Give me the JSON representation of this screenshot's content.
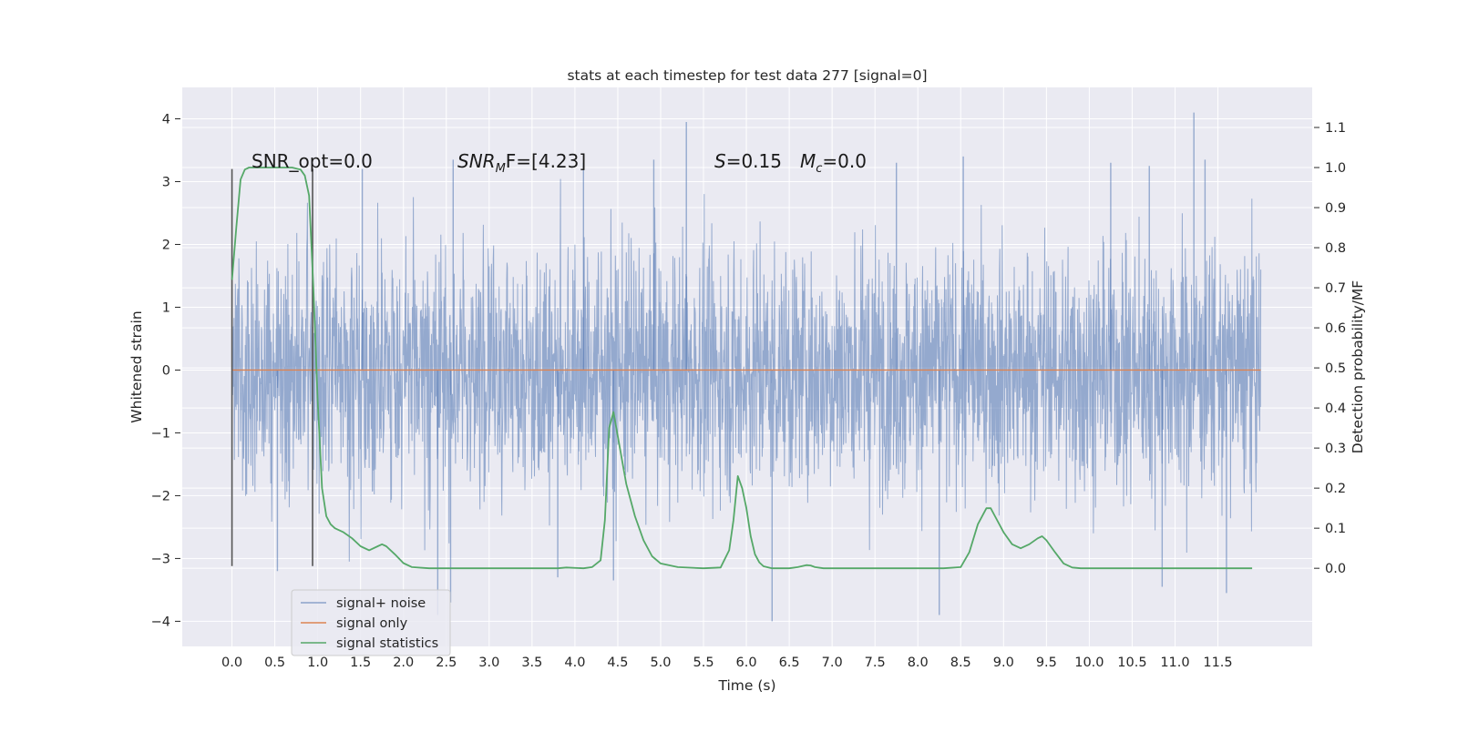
{
  "chart_data": {
    "type": "line",
    "title": "stats at each timestep for test data 277 [signal=0]",
    "xlabel": "Time (s)",
    "ylabel": "Whitened strain",
    "ylabel_right": "Detection probability/MF",
    "xlim": [
      -0.58,
      12.6
    ],
    "ylim": [
      -4.4,
      4.5
    ],
    "ylim_right": [
      -0.195,
      1.2
    ],
    "x_ticks": [
      0.0,
      0.5,
      1.0,
      1.5,
      2.0,
      2.5,
      3.0,
      3.5,
      4.0,
      4.5,
      5.0,
      5.5,
      6.0,
      6.5,
      7.0,
      7.5,
      8.0,
      8.5,
      9.0,
      9.5,
      10.0,
      10.5,
      11.0,
      11.5
    ],
    "x_tick_labels": [
      "0.0",
      "0.5",
      "1.0",
      "1.5",
      "2.0",
      "2.5",
      "3.0",
      "3.5",
      "4.0",
      "4.5",
      "5.0",
      "5.5",
      "6.0",
      "6.5",
      "7.0",
      "7.5",
      "8.0",
      "8.5",
      "9.0",
      "9.5",
      "10.0",
      "10.5",
      "11.0",
      "11.5"
    ],
    "y_ticks": [
      -4,
      -3,
      -2,
      -1,
      0,
      1,
      2,
      3,
      4
    ],
    "y_tick_labels": [
      "−4",
      "−3",
      "−2",
      "−1",
      "0",
      "1",
      "2",
      "3",
      "4"
    ],
    "y_ticks_right": [
      0.0,
      0.1,
      0.2,
      0.3,
      0.4,
      0.5,
      0.6,
      0.7,
      0.8,
      0.9,
      1.0,
      1.1
    ],
    "y_tick_labels_right": [
      "0.0",
      "0.1",
      "0.2",
      "0.3",
      "0.4",
      "0.5",
      "0.6",
      "0.7",
      "0.8",
      "0.9",
      "1.0",
      "1.1"
    ],
    "grid": true,
    "legend_position": "lower-left",
    "series": [
      {
        "name": "signal+ noise",
        "axis": "left",
        "color": "#4c72b0",
        "style": "dense noise trace",
        "x_range": [
          0.0,
          12.0
        ],
        "y_range": [
          -4.0,
          4.1
        ],
        "typical_band": [
          -2.1,
          2.1
        ],
        "spikes": [
          {
            "x": 0.53,
            "y": -3.2
          },
          {
            "x": 2.4,
            "y": -3.9
          },
          {
            "x": 2.55,
            "y": -3.7
          },
          {
            "x": 3.8,
            "y": -3.3
          },
          {
            "x": 4.45,
            "y": -3.35
          },
          {
            "x": 5.3,
            "y": 3.95
          },
          {
            "x": 6.3,
            "y": -4.0
          },
          {
            "x": 8.25,
            "y": -3.9
          },
          {
            "x": 10.85,
            "y": -3.45
          },
          {
            "x": 11.22,
            "y": 4.1
          },
          {
            "x": 11.6,
            "y": -3.55
          },
          {
            "x": 1.52,
            "y": 3.2
          },
          {
            "x": 2.58,
            "y": 3.35
          },
          {
            "x": 4.1,
            "y": 3.3
          },
          {
            "x": 4.92,
            "y": 3.35
          },
          {
            "x": 7.75,
            "y": 3.3
          },
          {
            "x": 8.53,
            "y": 3.4
          },
          {
            "x": 10.25,
            "y": 3.3
          },
          {
            "x": 10.7,
            "y": 3.25
          },
          {
            "x": 11.35,
            "y": 3.35
          }
        ]
      },
      {
        "name": "signal only",
        "axis": "left",
        "color": "#dd8452",
        "x": [
          0.0,
          12.0
        ],
        "y": [
          0.0,
          0.0
        ]
      },
      {
        "name": "signal statistics",
        "axis": "right",
        "color": "#55a868",
        "x": [
          0.0,
          0.05,
          0.1,
          0.15,
          0.2,
          0.3,
          0.5,
          0.7,
          0.8,
          0.85,
          0.9,
          0.95,
          1.0,
          1.05,
          1.1,
          1.15,
          1.2,
          1.3,
          1.4,
          1.5,
          1.6,
          1.7,
          1.75,
          1.8,
          1.9,
          2.0,
          2.1,
          2.3,
          2.5,
          3.0,
          3.5,
          3.8,
          3.9,
          4.1,
          4.2,
          4.3,
          4.35,
          4.4,
          4.45,
          4.5,
          4.6,
          4.7,
          4.8,
          4.9,
          5.0,
          5.2,
          5.5,
          5.7,
          5.8,
          5.85,
          5.9,
          5.95,
          6.0,
          6.05,
          6.1,
          6.15,
          6.2,
          6.3,
          6.5,
          6.6,
          6.7,
          6.75,
          6.8,
          6.9,
          7.5,
          8.0,
          8.3,
          8.5,
          8.6,
          8.7,
          8.8,
          8.85,
          8.9,
          9.0,
          9.1,
          9.2,
          9.3,
          9.4,
          9.45,
          9.5,
          9.6,
          9.7,
          9.8,
          9.9,
          10.0,
          11.0,
          11.5,
          11.9
        ],
        "y": [
          0.72,
          0.85,
          0.97,
          0.995,
          1.0,
          1.0,
          1.0,
          1.0,
          0.995,
          0.98,
          0.93,
          0.7,
          0.42,
          0.2,
          0.13,
          0.11,
          0.1,
          0.09,
          0.075,
          0.055,
          0.045,
          0.055,
          0.06,
          0.055,
          0.035,
          0.013,
          0.003,
          0.0,
          0.0,
          0.0,
          0.0,
          0.0,
          0.002,
          0.0,
          0.003,
          0.02,
          0.12,
          0.35,
          0.39,
          0.33,
          0.21,
          0.13,
          0.07,
          0.03,
          0.012,
          0.003,
          0.0,
          0.002,
          0.045,
          0.12,
          0.23,
          0.2,
          0.15,
          0.08,
          0.035,
          0.015,
          0.005,
          0.0,
          0.0,
          0.003,
          0.008,
          0.007,
          0.003,
          0.0,
          0.0,
          0.0,
          0.0,
          0.003,
          0.04,
          0.11,
          0.15,
          0.15,
          0.13,
          0.09,
          0.06,
          0.05,
          0.06,
          0.075,
          0.08,
          0.07,
          0.04,
          0.012,
          0.002,
          0.0,
          0.0,
          0.0,
          0.0,
          0.0
        ]
      }
    ],
    "vertical_markers": [
      {
        "x": 0.0,
        "y_range": [
          -3.12,
          3.2
        ],
        "color": "#555555"
      },
      {
        "x": 0.94,
        "y_range": [
          -3.12,
          3.2
        ],
        "color": "#555555"
      }
    ],
    "annotations": {
      "snr_opt": "SNR_opt=0.0",
      "snr_mf_prefix": "SNR",
      "snr_mf_sub": "M",
      "snr_mf_suffix": "F=[4.23]",
      "s_prefix": "S",
      "s_suffix": "=0.15",
      "mc_prefix": "M",
      "mc_sub": "c",
      "mc_suffix": "=0.0"
    }
  }
}
